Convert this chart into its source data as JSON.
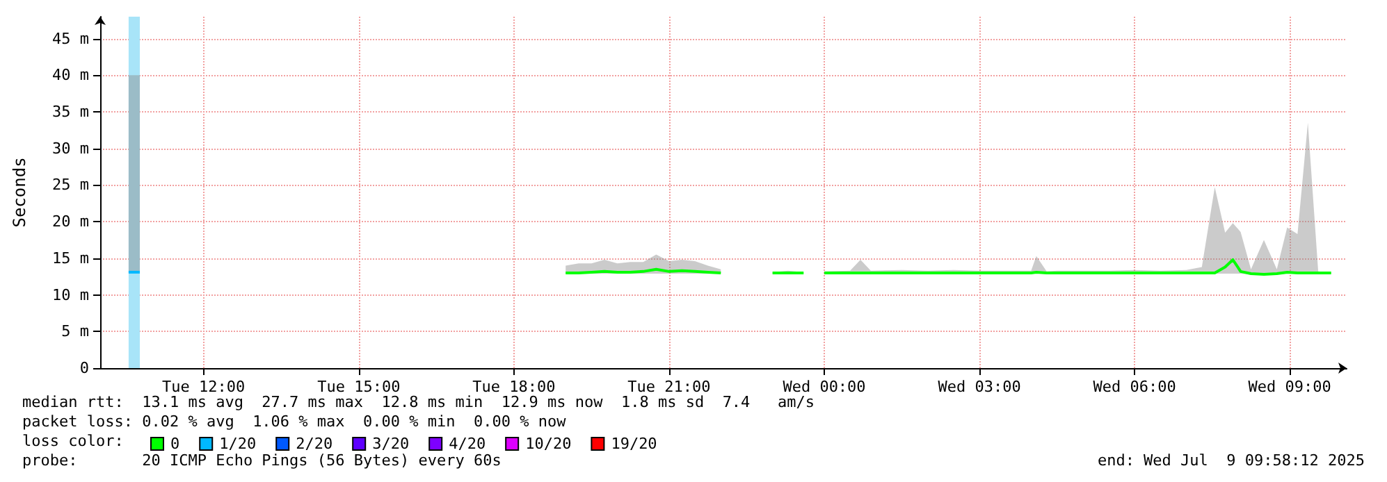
{
  "chart_data": {
    "type": "line",
    "ylabel": "Seconds",
    "legend_title": "loss color:",
    "legend": "bottom left",
    "grid": true,
    "marker": "none",
    "xlim": [
      "2025-07-08T10:00",
      "2025-07-09T10:06"
    ],
    "ylim": [
      0,
      48
    ],
    "xticks": [
      {
        "value": "2025-07-08T12:00",
        "label": "Tue 12:00"
      },
      {
        "value": "2025-07-08T15:00",
        "label": "Tue 15:00"
      },
      {
        "value": "2025-07-08T18:00",
        "label": "Tue 18:00"
      },
      {
        "value": "2025-07-08T21:00",
        "label": "Tue 21:00"
      },
      {
        "value": "2025-07-09T00:00",
        "label": "Wed 00:00"
      },
      {
        "value": "2025-07-09T03:00",
        "label": "Wed 03:00"
      },
      {
        "value": "2025-07-09T06:00",
        "label": "Wed 06:00"
      },
      {
        "value": "2025-07-09T09:00",
        "label": "Wed 09:00"
      }
    ],
    "yticks": [
      0,
      {
        "value": 5,
        "label": "5 m"
      },
      {
        "value": 10,
        "label": "10 m"
      },
      {
        "value": 15,
        "label": "15 m"
      },
      {
        "value": 20,
        "label": "20 m"
      },
      {
        "value": 25,
        "label": "25 m"
      },
      {
        "value": 30,
        "label": "30 m"
      },
      {
        "value": 35,
        "label": "35 m"
      },
      {
        "value": 40,
        "label": "40 m"
      },
      {
        "value": 45,
        "label": "45 m"
      }
    ],
    "bands": [
      {
        "axis": "x",
        "from": "2025-07-08T10:33",
        "to": "2025-07-08T10:46",
        "color": "#a8e4f8"
      }
    ],
    "series": [
      {
        "name": "0",
        "color": "#00ff00",
        "x": [
          "2025-07-08T19:00",
          "2025-07-08T19:15",
          "2025-07-08T19:30",
          "2025-07-08T19:45",
          "2025-07-08T20:00",
          "2025-07-08T20:15",
          "2025-07-08T20:30",
          "2025-07-08T20:45",
          "2025-07-08T21:00",
          "2025-07-08T21:15",
          "2025-07-08T21:30",
          "2025-07-08T21:45",
          "2025-07-08T22:00",
          "2025-07-08T22:30",
          "2025-07-08T23:00",
          "2025-07-08T23:18",
          "2025-07-08T23:36",
          "2025-07-08T23:48",
          "2025-07-09T00:00",
          "2025-07-09T00:30",
          "2025-07-09T00:42",
          "2025-07-09T00:54",
          "2025-07-09T01:30",
          "2025-07-09T02:00",
          "2025-07-09T02:30",
          "2025-07-09T03:00",
          "2025-07-09T03:30",
          "2025-07-09T04:00",
          "2025-07-09T04:06",
          "2025-07-09T04:18",
          "2025-07-09T04:30",
          "2025-07-09T05:00",
          "2025-07-09T05:30",
          "2025-07-09T06:00",
          "2025-07-09T06:30",
          "2025-07-09T07:00",
          "2025-07-09T07:18",
          "2025-07-09T07:33",
          "2025-07-09T07:45",
          "2025-07-09T07:54",
          "2025-07-09T08:03",
          "2025-07-09T08:15",
          "2025-07-09T08:30",
          "2025-07-09T08:45",
          "2025-07-09T08:57",
          "2025-07-09T09:09",
          "2025-07-09T09:21",
          "2025-07-09T09:33",
          "2025-07-09T09:48"
        ],
        "values": [
          13,
          13,
          13.1,
          13.2,
          13.1,
          13.1,
          13.2,
          13.5,
          13.2,
          13.3,
          13.2,
          13.1,
          13,
          null,
          13,
          13,
          13,
          null,
          13,
          13,
          13,
          13,
          13,
          13,
          13,
          13,
          13,
          13,
          13.1,
          13,
          13,
          13,
          13,
          13,
          13,
          13,
          13,
          13,
          13.8,
          14.8,
          13.2,
          12.9,
          12.8,
          12.9,
          13.1,
          13,
          13,
          13,
          13
        ],
        "lower": [
          12.9,
          12.9,
          12.9,
          12.9,
          12.9,
          12.9,
          12.9,
          12.9,
          12.9,
          12.9,
          12.9,
          12.9,
          12.9,
          null,
          12.9,
          12.9,
          12.9,
          null,
          12.9,
          12.9,
          12.9,
          12.9,
          12.9,
          12.9,
          12.9,
          12.9,
          12.9,
          12.9,
          12.9,
          12.9,
          12.9,
          12.9,
          12.9,
          12.9,
          12.9,
          12.9,
          12.9,
          12.9,
          12.9,
          12.9,
          12.9,
          12.8,
          12.7,
          12.8,
          12.9,
          12.9,
          12.9,
          12.9,
          12.9
        ],
        "upper": [
          14,
          14.3,
          14.3,
          14.8,
          14.3,
          14.5,
          14.5,
          15.5,
          14.6,
          14.8,
          14.6,
          14,
          13.5,
          null,
          13.1,
          13.3,
          13.1,
          null,
          13.2,
          13.3,
          14.8,
          13.3,
          13.4,
          13.3,
          13.4,
          13.3,
          13.3,
          13.3,
          15.3,
          13.2,
          13.3,
          13.3,
          13.3,
          13.4,
          13.3,
          13.4,
          13.8,
          24.7,
          18.5,
          19.8,
          18.6,
          13.5,
          17.5,
          13.5,
          19.2,
          18.3,
          33.5,
          13.2,
          13
        ]
      },
      {
        "name": "1/20",
        "color": "#00b8ff",
        "x": [
          "2025-07-08T10:33",
          "2025-07-08T10:46"
        ],
        "values": [
          13.1,
          13.1
        ],
        "lower": [
          13,
          13
        ],
        "upper": [
          40,
          40
        ]
      },
      {
        "name": "2/20",
        "color": "#0059ff"
      },
      {
        "name": "3/20",
        "color": "#5e00ff"
      },
      {
        "name": "4/20",
        "color": "#7e00ff"
      },
      {
        "name": "10/20",
        "color": "#dd00ff"
      },
      {
        "name": "19/20",
        "color": "#ff0000"
      }
    ],
    "annotations": [
      "median rtt:  13.1 ms avg  27.7 ms max  12.8 ms min  12.9 ms now  1.8 ms sd  7.4   am/s",
      "packet loss: 0.02 % avg  1.06 % max  0.00 % min  0.00 % now",
      "probe:       20 ICMP Echo Pings (56 Bytes) every 60s",
      "end: Wed Jul  9 09:58:12 2025"
    ]
  }
}
